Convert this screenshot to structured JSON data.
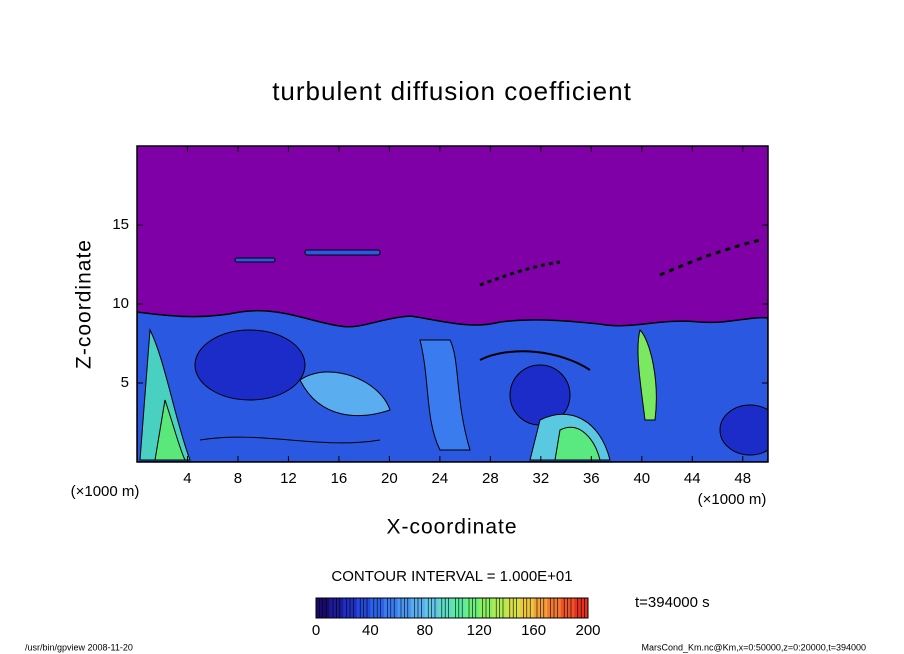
{
  "chart_data": {
    "type": "contour",
    "title": "turbulent diffusion coefficient",
    "xlabel": "X-coordinate",
    "ylabel": "Z-coordinate",
    "xunit": "(×1000 m)",
    "yunit": "(×1000 m)",
    "xlim": [
      0,
      50
    ],
    "ylim": [
      0,
      20
    ],
    "xticks": [
      4,
      8,
      12,
      16,
      20,
      24,
      28,
      32,
      36,
      40,
      44,
      48
    ],
    "yticks": [
      5,
      10,
      15
    ],
    "contour_interval": "CONTOUR INTERVAL = 1.000E+01",
    "time_label": "t=394000 s",
    "colorbar": {
      "clim": [
        0,
        200
      ],
      "ticks": [
        0,
        40,
        80,
        120,
        160,
        200
      ],
      "step": 10,
      "colors": [
        "#1a0a6e",
        "#1c1c9a",
        "#1f2fc4",
        "#2448dc",
        "#2c62ea",
        "#3a7cf0",
        "#4a96f2",
        "#5aaef0",
        "#62c6e8",
        "#5edcc4",
        "#5aeaa0",
        "#6af07c",
        "#8af060",
        "#b0ec50",
        "#d8e048",
        "#f0c840",
        "#f4a038",
        "#f27a30",
        "#ee5428",
        "#e63020"
      ]
    },
    "footer_left": "/usr/bin/gpview  2008-11-20",
    "footer_right": "MarsCond_Km.nc@Km,x=0:50000,z=0:20000,t=394000"
  }
}
